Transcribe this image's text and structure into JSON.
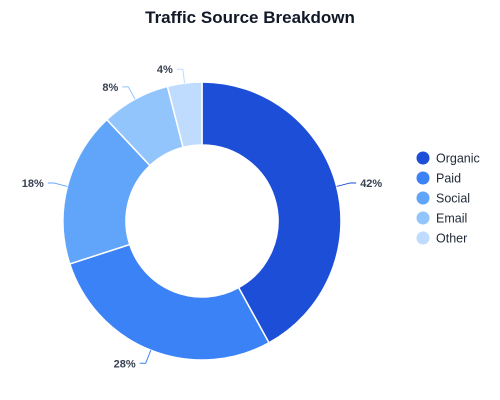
{
  "chart_data": {
    "type": "pie",
    "variant": "donut",
    "title": "Traffic Source Breakdown",
    "categories": [
      "Organic",
      "Paid",
      "Social",
      "Email",
      "Other"
    ],
    "values": [
      42,
      28,
      18,
      8,
      4
    ],
    "value_labels": [
      "42%",
      "28%",
      "18%",
      "8%",
      "4%"
    ],
    "colors": [
      "#1d4ed8",
      "#3b82f6",
      "#60a5fa",
      "#93c5fd",
      "#bfdbfe"
    ],
    "legend_position": "right"
  }
}
